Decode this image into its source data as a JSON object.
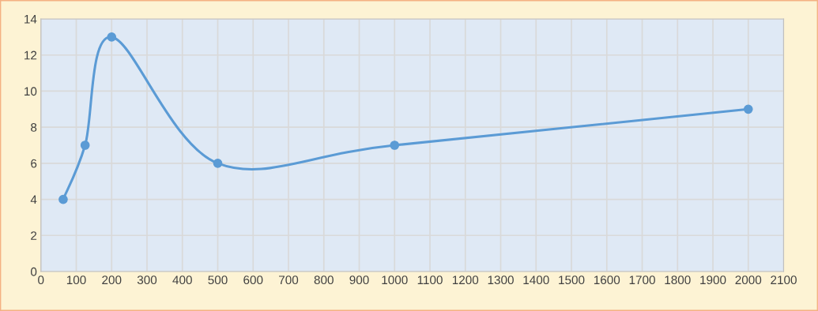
{
  "chart_data": {
    "type": "line",
    "x": [
      63,
      125,
      200,
      500,
      1000,
      2000
    ],
    "series": [
      {
        "color": "#5b9bd5",
        "values": [
          4,
          7,
          13,
          6,
          7,
          9
        ]
      }
    ],
    "xlim": [
      0,
      2100
    ],
    "xticks": [
      0,
      100,
      200,
      300,
      400,
      500,
      600,
      700,
      800,
      900,
      1000,
      1100,
      1200,
      1300,
      1400,
      1500,
      1600,
      1700,
      1800,
      1900,
      2000,
      2100
    ],
    "ylim": [
      0,
      14
    ],
    "yticks": [
      0,
      2,
      4,
      6,
      8,
      10,
      12,
      14
    ],
    "grid": true,
    "marker": "circle",
    "line_style": "solid"
  }
}
